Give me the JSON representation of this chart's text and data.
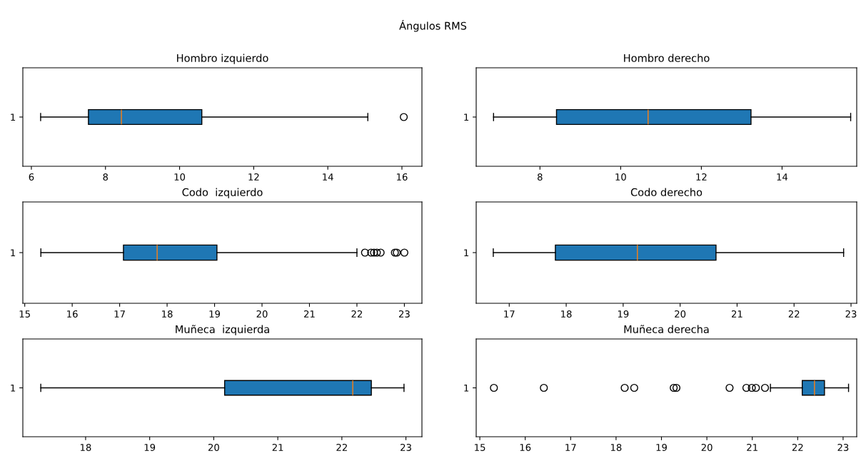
{
  "chart_data": [
    {
      "type": "box",
      "orientation": "horizontal",
      "title": "Hombro izquierdo",
      "annotations": [
        "Ángulos RMS"
      ],
      "categories": [
        "1"
      ],
      "color": "#1f77b4",
      "xlim": [
        5.77,
        16.54
      ],
      "xticks": [
        6,
        8,
        10,
        12,
        14,
        16
      ],
      "boxes": [
        {
          "low": 6.25,
          "q1": 7.54,
          "median": 8.43,
          "q3": 10.6,
          "high": 15.08,
          "outliers": [
            16.05
          ]
        }
      ]
    },
    {
      "type": "box",
      "orientation": "horizontal",
      "title": "Hombro derecho",
      "categories": [
        "1"
      ],
      "color": "#1f77b4",
      "xlim": [
        6.42,
        15.85
      ],
      "xticks": [
        8,
        10,
        12,
        14
      ],
      "boxes": [
        {
          "low": 6.85,
          "q1": 8.41,
          "median": 10.68,
          "q3": 13.23,
          "high": 15.7
        }
      ]
    },
    {
      "type": "box",
      "orientation": "horizontal",
      "title": "Codo  izquierdo",
      "categories": [
        "1"
      ],
      "color": "#1f77b4",
      "xlim": [
        14.96,
        23.37
      ],
      "xticks": [
        15,
        16,
        17,
        18,
        19,
        20,
        21,
        22,
        23
      ],
      "boxes": [
        {
          "low": 15.34,
          "q1": 17.08,
          "median": 17.79,
          "q3": 19.05,
          "high": 22.0,
          "outliers": [
            22.17,
            22.3,
            22.36,
            22.42,
            22.5,
            22.8,
            22.84,
            23.0
          ]
        }
      ]
    },
    {
      "type": "box",
      "orientation": "horizontal",
      "title": "Codo derecho",
      "categories": [
        "1"
      ],
      "color": "#1f77b4",
      "xlim": [
        16.42,
        23.1
      ],
      "xticks": [
        17,
        18,
        19,
        20,
        21,
        22,
        23
      ],
      "boxes": [
        {
          "low": 16.72,
          "q1": 17.81,
          "median": 19.25,
          "q3": 20.63,
          "high": 22.87
        }
      ]
    },
    {
      "type": "box",
      "orientation": "horizontal",
      "title": "Muñeca  izquierda",
      "categories": [
        "1"
      ],
      "color": "#1f77b4",
      "xlim": [
        17.02,
        23.25
      ],
      "xticks": [
        18,
        19,
        20,
        21,
        22,
        23
      ],
      "boxes": [
        {
          "low": 17.3,
          "q1": 20.17,
          "median": 22.17,
          "q3": 22.46,
          "high": 22.97
        }
      ]
    },
    {
      "type": "box",
      "orientation": "horizontal",
      "title": "Muñeca derecha",
      "categories": [
        "1"
      ],
      "color": "#1f77b4",
      "xlim": [
        14.92,
        23.3
      ],
      "xticks": [
        15,
        16,
        17,
        18,
        19,
        20,
        21,
        22,
        23
      ],
      "boxes": [
        {
          "low": 21.4,
          "q1": 22.1,
          "median": 22.37,
          "q3": 22.59,
          "high": 23.12,
          "outliers": [
            15.31,
            16.41,
            18.19,
            18.4,
            19.27,
            19.33,
            20.5,
            20.87,
            20.99,
            21.08,
            21.28
          ]
        }
      ]
    }
  ]
}
